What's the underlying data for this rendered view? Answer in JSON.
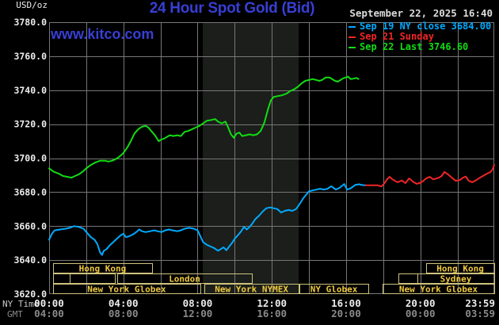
{
  "colors": {
    "background": "#000000",
    "blue": "#383fd4",
    "cyan": "#00aaff",
    "red": "#f02525",
    "green": "#12dc12",
    "grid": "#777777",
    "shading": "#1b1e1a",
    "session_border": "#cfc37e",
    "session_text": "#efc93e",
    "tick_white": "#ececec",
    "tick_gray": "#8a8a8a",
    "axis_caption": "#c8c8c8",
    "date_text": "#dcdcdc"
  },
  "header": {
    "unit_label": "USD/oz",
    "title": "24 Hour Spot Gold (Bid)",
    "watermark": "www.kitco.com",
    "datetime": "September 22, 2025 16:40"
  },
  "legend": {
    "items": [
      {
        "label": "Sep 19 NY close 3684.00",
        "color": "#00aaff"
      },
      {
        "label": "Sep 21 Sunday",
        "color": "#f02525"
      },
      {
        "label": "Sep 22 Last 3746.60",
        "color": "#12dc12"
      }
    ]
  },
  "axes": {
    "ny_caption": "NY Time",
    "gmt_caption": "GMT",
    "y_ticks": [
      {
        "v": 3780,
        "label": "3780.0"
      },
      {
        "v": 3760,
        "label": "3760.0"
      },
      {
        "v": 3740,
        "label": "3740.0"
      },
      {
        "v": 3720,
        "label": "3720.0"
      },
      {
        "v": 3700,
        "label": "3700.0"
      },
      {
        "v": 3680,
        "label": "3680.0"
      },
      {
        "v": 3660,
        "label": "3660.0"
      },
      {
        "v": 3640,
        "label": "3640.0"
      },
      {
        "v": 3620,
        "label": "3620.0"
      }
    ],
    "x_ticks": [
      {
        "t": 0,
        "ny": "00:00",
        "gmt": "04:00",
        "align": "middle"
      },
      {
        "t": 4,
        "ny": "04:00",
        "gmt": "08:00",
        "align": "middle"
      },
      {
        "t": 8,
        "ny": "08:00",
        "gmt": "12:00",
        "align": "middle"
      },
      {
        "t": 12,
        "ny": "12:00",
        "gmt": "16:00",
        "align": "middle"
      },
      {
        "t": 16,
        "ny": "16:00",
        "gmt": "20:00",
        "align": "middle"
      },
      {
        "t": 20,
        "ny": "20:00",
        "gmt": "00:00",
        "align": "middle"
      },
      {
        "t": 23.983,
        "ny": "23:59",
        "gmt": "03:59",
        "align": "end"
      }
    ]
  },
  "shaded_band": {
    "t0": 8.28,
    "t1": 13.45,
    "meaning": "New York NYMEX floor session"
  },
  "sessions": [
    {
      "row": 0,
      "label": "Hong Kong",
      "t0": 0.21,
      "t1": 5.55
    },
    {
      "row": 0,
      "label": "Hong Kong",
      "t0": 20.32,
      "t1": 23.98
    },
    {
      "row": 1,
      "label": "",
      "t0": 0.21,
      "t1": 1.11
    },
    {
      "row": 1,
      "label": "",
      "t0": 1.11,
      "t1": 3.54
    },
    {
      "row": 1,
      "label": "London",
      "t0": 3.67,
      "t1": 10.93
    },
    {
      "row": 1,
      "label": "",
      "t0": 18.82,
      "t1": 19.85
    },
    {
      "row": 1,
      "label": "Sydney",
      "t0": 19.85,
      "t1": 23.98
    },
    {
      "row": 2,
      "label": "New York Globex",
      "t0": 0.21,
      "t1": 8.15
    },
    {
      "row": 2,
      "label": "New York NYMEX",
      "t0": 8.37,
      "t1": 13.45
    },
    {
      "row": 2,
      "label": "NY Globex",
      "t0": 13.49,
      "t1": 17.2
    },
    {
      "row": 2,
      "label": "New York Globex",
      "t0": 17.97,
      "t1": 23.98
    }
  ],
  "chart_data": {
    "type": "line",
    "title": "24 Hour Spot Gold (Bid)",
    "ylabel": "USD/oz",
    "xlabel": "NY Time (hours 00:00-23:59)",
    "ylim": [
      3620,
      3780
    ],
    "xlim_hours": [
      0,
      23.983
    ],
    "grid": true,
    "legend_position": "top-right",
    "series": [
      {
        "name": "Sep 19 NY close 3684.00",
        "color_key": "cyan",
        "points": [
          [
            0,
            3652
          ],
          [
            0.15,
            3655.5
          ],
          [
            0.3,
            3657.5
          ],
          [
            0.6,
            3658
          ],
          [
            0.9,
            3658.5
          ],
          [
            1.1,
            3659
          ],
          [
            1.35,
            3660
          ],
          [
            1.6,
            3659.5
          ],
          [
            1.85,
            3658.5
          ],
          [
            2.05,
            3656
          ],
          [
            2.25,
            3653.5
          ],
          [
            2.45,
            3652
          ],
          [
            2.6,
            3649.5
          ],
          [
            2.75,
            3644.5
          ],
          [
            2.85,
            3643
          ],
          [
            2.95,
            3645.5
          ],
          [
            3.1,
            3646.5
          ],
          [
            3.25,
            3648.5
          ],
          [
            3.45,
            3650.5
          ],
          [
            3.65,
            3652.5
          ],
          [
            3.85,
            3654.5
          ],
          [
            4,
            3655.5
          ],
          [
            4.15,
            3653.5
          ],
          [
            4.3,
            3654
          ],
          [
            4.5,
            3655
          ],
          [
            4.7,
            3656.5
          ],
          [
            4.85,
            3658
          ],
          [
            5,
            3657
          ],
          [
            5.2,
            3656.5
          ],
          [
            5.45,
            3657
          ],
          [
            5.65,
            3657.5
          ],
          [
            5.85,
            3657
          ],
          [
            6.05,
            3656.5
          ],
          [
            6.25,
            3657.5
          ],
          [
            6.45,
            3658
          ],
          [
            6.65,
            3657.5
          ],
          [
            6.9,
            3657
          ],
          [
            7.1,
            3657.5
          ],
          [
            7.3,
            3658.5
          ],
          [
            7.55,
            3659
          ],
          [
            7.8,
            3658.5
          ],
          [
            8,
            3657.5
          ],
          [
            8.15,
            3654
          ],
          [
            8.3,
            3650.5
          ],
          [
            8.5,
            3649
          ],
          [
            8.7,
            3648
          ],
          [
            8.9,
            3647
          ],
          [
            9.1,
            3645.5
          ],
          [
            9.25,
            3646.5
          ],
          [
            9.4,
            3647.5
          ],
          [
            9.55,
            3645.8
          ],
          [
            9.7,
            3648
          ],
          [
            9.85,
            3650
          ],
          [
            10,
            3652.5
          ],
          [
            10.2,
            3655
          ],
          [
            10.35,
            3657
          ],
          [
            10.5,
            3659.5
          ],
          [
            10.65,
            3658
          ],
          [
            10.8,
            3659.5
          ],
          [
            10.95,
            3661.5
          ],
          [
            11.1,
            3664
          ],
          [
            11.3,
            3666
          ],
          [
            11.5,
            3668.5
          ],
          [
            11.7,
            3670.5
          ],
          [
            11.9,
            3671
          ],
          [
            12.1,
            3670.5
          ],
          [
            12.3,
            3670
          ],
          [
            12.5,
            3668
          ],
          [
            12.7,
            3669
          ],
          [
            12.9,
            3669.5
          ],
          [
            13.1,
            3669
          ],
          [
            13.3,
            3670
          ],
          [
            13.5,
            3673
          ],
          [
            13.7,
            3676.5
          ],
          [
            13.85,
            3678.5
          ],
          [
            14,
            3680.5
          ],
          [
            14.2,
            3681
          ],
          [
            14.4,
            3681.5
          ],
          [
            14.6,
            3682
          ],
          [
            14.8,
            3681.5
          ],
          [
            15,
            3682
          ],
          [
            15.2,
            3683.5
          ],
          [
            15.45,
            3681.5
          ],
          [
            15.65,
            3682.5
          ],
          [
            15.9,
            3684.8
          ],
          [
            16.05,
            3681.5
          ],
          [
            16.2,
            3682
          ],
          [
            16.35,
            3683
          ],
          [
            16.5,
            3684.3
          ],
          [
            16.7,
            3684.6
          ],
          [
            16.85,
            3684.2
          ],
          [
            17.05,
            3684
          ]
        ]
      },
      {
        "name": "Sep 21 Sunday",
        "color_key": "red",
        "points": [
          [
            17.05,
            3684
          ],
          [
            17.4,
            3684
          ],
          [
            17.7,
            3684
          ],
          [
            17.9,
            3683.4
          ],
          [
            18.05,
            3685
          ],
          [
            18.2,
            3687.5
          ],
          [
            18.35,
            3689
          ],
          [
            18.5,
            3687.5
          ],
          [
            18.65,
            3686.5
          ],
          [
            18.8,
            3685.8
          ],
          [
            19,
            3686.9
          ],
          [
            19.2,
            3685.3
          ],
          [
            19.4,
            3688.1
          ],
          [
            19.6,
            3686.2
          ],
          [
            19.8,
            3684.9
          ],
          [
            20,
            3685.5
          ],
          [
            20.15,
            3686.5
          ],
          [
            20.3,
            3688
          ],
          [
            20.5,
            3689
          ],
          [
            20.7,
            3687.5
          ],
          [
            20.85,
            3688
          ],
          [
            21,
            3688.5
          ],
          [
            21.15,
            3689.5
          ],
          [
            21.3,
            3691.9
          ],
          [
            21.5,
            3690.4
          ],
          [
            21.7,
            3688.5
          ],
          [
            21.9,
            3686.7
          ],
          [
            22.1,
            3687
          ],
          [
            22.3,
            3688.5
          ],
          [
            22.45,
            3689.2
          ],
          [
            22.6,
            3686.7
          ],
          [
            22.8,
            3685.8
          ],
          [
            23,
            3687
          ],
          [
            23.2,
            3688.5
          ],
          [
            23.4,
            3689.7
          ],
          [
            23.6,
            3690.9
          ],
          [
            23.8,
            3692
          ],
          [
            23.9,
            3693.5
          ],
          [
            23.98,
            3696
          ]
        ]
      },
      {
        "name": "Sep 22 Last 3746.60",
        "color_key": "green",
        "points": [
          [
            0,
            3694
          ],
          [
            0.25,
            3692
          ],
          [
            0.5,
            3691
          ],
          [
            0.75,
            3689.5
          ],
          [
            1,
            3689
          ],
          [
            1.2,
            3688.5
          ],
          [
            1.4,
            3689.5
          ],
          [
            1.6,
            3690.5
          ],
          [
            1.8,
            3692
          ],
          [
            2,
            3694
          ],
          [
            2.25,
            3696
          ],
          [
            2.5,
            3697.5
          ],
          [
            2.75,
            3698.5
          ],
          [
            3,
            3698.5
          ],
          [
            3.2,
            3698
          ],
          [
            3.4,
            3698.5
          ],
          [
            3.6,
            3699.5
          ],
          [
            3.8,
            3701
          ],
          [
            4,
            3703
          ],
          [
            4.2,
            3706
          ],
          [
            4.4,
            3710
          ],
          [
            4.6,
            3714.5
          ],
          [
            4.8,
            3717
          ],
          [
            5,
            3718.5
          ],
          [
            5.2,
            3719
          ],
          [
            5.35,
            3718
          ],
          [
            5.5,
            3716
          ],
          [
            5.7,
            3713.5
          ],
          [
            5.9,
            3710
          ],
          [
            6.05,
            3711
          ],
          [
            6.2,
            3711.5
          ],
          [
            6.35,
            3712.5
          ],
          [
            6.5,
            3713.5
          ],
          [
            6.7,
            3713
          ],
          [
            6.9,
            3713.5
          ],
          [
            7.1,
            3713
          ],
          [
            7.3,
            3715.5
          ],
          [
            7.5,
            3716
          ],
          [
            7.7,
            3717
          ],
          [
            7.9,
            3718
          ],
          [
            8.1,
            3719
          ],
          [
            8.3,
            3720.5
          ],
          [
            8.5,
            3722
          ],
          [
            8.75,
            3722.5
          ],
          [
            8.95,
            3723
          ],
          [
            9.1,
            3721.5
          ],
          [
            9.3,
            3720.5
          ],
          [
            9.5,
            3721.5
          ],
          [
            9.65,
            3718
          ],
          [
            9.8,
            3714
          ],
          [
            9.95,
            3712
          ],
          [
            10.1,
            3714.5
          ],
          [
            10.25,
            3715
          ],
          [
            10.4,
            3713
          ],
          [
            10.6,
            3713.5
          ],
          [
            10.8,
            3714
          ],
          [
            11,
            3713.5
          ],
          [
            11.2,
            3714
          ],
          [
            11.4,
            3716
          ],
          [
            11.6,
            3721
          ],
          [
            11.8,
            3729
          ],
          [
            11.95,
            3734
          ],
          [
            12.1,
            3736
          ],
          [
            12.3,
            3736.5
          ],
          [
            12.55,
            3737
          ],
          [
            12.8,
            3738
          ],
          [
            13,
            3739.5
          ],
          [
            13.2,
            3740.5
          ],
          [
            13.4,
            3742
          ],
          [
            13.6,
            3744
          ],
          [
            13.8,
            3745.5
          ],
          [
            14,
            3746
          ],
          [
            14.2,
            3746.5
          ],
          [
            14.4,
            3746
          ],
          [
            14.55,
            3745.5
          ],
          [
            14.7,
            3746
          ],
          [
            14.9,
            3747.5
          ],
          [
            15.1,
            3747.5
          ],
          [
            15.25,
            3746.5
          ],
          [
            15.4,
            3745.5
          ],
          [
            15.55,
            3745
          ],
          [
            15.7,
            3746
          ],
          [
            15.85,
            3747
          ],
          [
            16,
            3747.5
          ],
          [
            16.1,
            3748
          ],
          [
            16.25,
            3746.5
          ],
          [
            16.4,
            3746.8
          ],
          [
            16.55,
            3747.2
          ],
          [
            16.67,
            3746.6
          ]
        ]
      }
    ]
  }
}
